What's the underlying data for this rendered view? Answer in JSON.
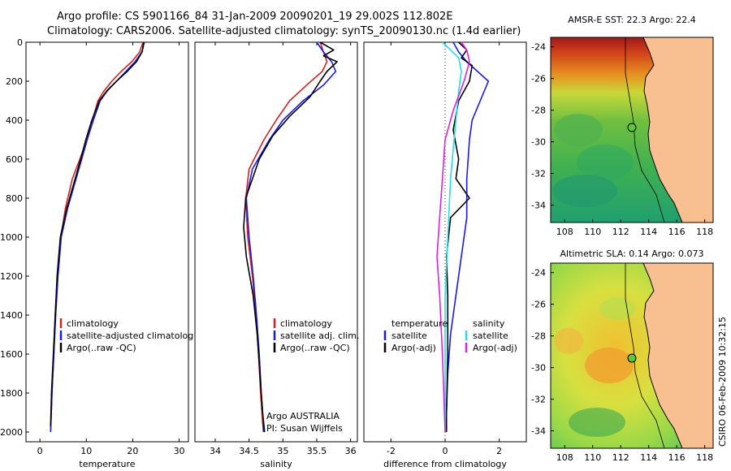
{
  "header": {
    "line1": "Argo profile: CS 5901166_84 31-Jan-2009 20090201_19 29.002S 112.802E",
    "line2": "Climatology: CARS2006. Satellite-adjusted climatology: synTS_20090130.nc (1.4d earlier)"
  },
  "chart_data": [
    {
      "type": "line",
      "xlabel": "temperature",
      "ylabel": "",
      "xlim": [
        -3,
        32
      ],
      "ylim": [
        2050,
        0
      ],
      "xticks": [
        "0",
        "10",
        "20",
        "30"
      ],
      "yticks": [
        "0",
        "200",
        "400",
        "600",
        "800",
        "1000",
        "1200",
        "1400",
        "1600",
        "1800",
        "2000"
      ],
      "legend": [
        "climatology",
        "satellite-adjusted climatolog",
        "Argo(..raw -QC)"
      ],
      "colors": {
        "climatology": "#d42020",
        "satellite": "#1a1ae6",
        "argo": "#000000"
      },
      "series": [
        {
          "name": "climatology",
          "x": [
            22.2,
            21.5,
            19.8,
            17.5,
            15.5,
            13.8,
            12.5,
            11.3,
            10.1,
            8.6,
            7.0,
            5.5,
            4.5,
            3.8,
            3.3,
            3.0,
            2.6,
            2.3
          ],
          "y": [
            0,
            50,
            100,
            150,
            200,
            250,
            300,
            400,
            500,
            600,
            700,
            850,
            1000,
            1200,
            1400,
            1600,
            1800,
            2000
          ]
        },
        {
          "name": "satellite-adjusted climatolog",
          "x": [
            22.5,
            22.0,
            20.5,
            18.5,
            16.5,
            14.5,
            13.0,
            11.5,
            10.2,
            9.0,
            7.8,
            6.0,
            4.6,
            3.9,
            3.4,
            3.0,
            2.6,
            2.3
          ],
          "y": [
            0,
            50,
            100,
            150,
            200,
            250,
            300,
            400,
            500,
            600,
            700,
            850,
            1000,
            1200,
            1400,
            1600,
            1800,
            2000
          ]
        },
        {
          "name": "Argo(..raw -QC)",
          "x": [
            22.4,
            22.0,
            20.8,
            18.8,
            16.5,
            14.4,
            12.8,
            11.2,
            9.9,
            8.8,
            7.6,
            5.8,
            4.4,
            3.7,
            3.3,
            2.9,
            2.5,
            2.3
          ],
          "y": [
            0,
            50,
            100,
            150,
            200,
            250,
            300,
            400,
            500,
            600,
            700,
            850,
            1000,
            1200,
            1400,
            1600,
            1800,
            1970
          ]
        }
      ]
    },
    {
      "type": "line",
      "xlabel": "salinity",
      "ylabel": "",
      "xlim": [
        33.7,
        36.1
      ],
      "ylim": [
        2050,
        0
      ],
      "xticks": [
        "34",
        "34.5",
        "35",
        "35.5",
        "36"
      ],
      "legend": [
        "climatology",
        "satellite adj. clim.",
        "Argo(..raw -QC)"
      ],
      "annotation": [
        "Argo AUSTRALIA",
        "PI: Susan Wijffels"
      ],
      "series": [
        {
          "name": "climatology",
          "x": [
            35.55,
            35.6,
            35.65,
            35.58,
            35.35,
            35.1,
            34.9,
            34.72,
            34.5,
            34.45,
            34.48,
            34.55,
            34.6,
            34.64,
            34.67,
            34.7,
            34.71
          ],
          "y": [
            0,
            50,
            100,
            150,
            220,
            300,
            400,
            500,
            650,
            800,
            1000,
            1200,
            1400,
            1600,
            1800,
            1950,
            2000
          ]
        },
        {
          "name": "satellite adj. clim.",
          "x": [
            35.5,
            35.6,
            35.72,
            35.78,
            35.6,
            35.3,
            35.0,
            34.8,
            34.55,
            34.46,
            34.5,
            34.56,
            34.61,
            34.65,
            34.68,
            34.71,
            34.72
          ],
          "y": [
            0,
            50,
            100,
            150,
            220,
            300,
            400,
            500,
            650,
            800,
            1000,
            1200,
            1400,
            1600,
            1800,
            1950,
            2000
          ]
        },
        {
          "name": "Argo(..raw -QC)",
          "x": [
            35.55,
            35.75,
            35.6,
            35.8,
            35.65,
            35.55,
            35.4,
            35.1,
            34.85,
            34.65,
            34.45,
            34.42,
            34.46,
            34.56,
            34.62,
            34.66,
            34.7,
            34.73
          ],
          "y": [
            0,
            40,
            70,
            100,
            150,
            200,
            280,
            380,
            480,
            600,
            800,
            950,
            1100,
            1300,
            1500,
            1700,
            1900,
            2000
          ]
        }
      ]
    },
    {
      "type": "line",
      "xlabel": "difference from climatology",
      "ylabel": "",
      "xlim": [
        -3,
        3
      ],
      "ylim": [
        2050,
        0
      ],
      "xticks": [
        "-2",
        "0",
        "2"
      ],
      "legend_left_title": "temperature",
      "legend_left": [
        "satellite",
        "Argo(-adj)"
      ],
      "legend_right_title": "salinity",
      "legend_right": [
        "satellite",
        "Argo(-adj)"
      ],
      "colors": {
        "t_satellite": "#1a1ae6",
        "t_argo": "#000000",
        "s_satellite": "#22e0e6",
        "s_argo": "#e020e0"
      },
      "series": [
        {
          "name": "satellite",
          "group": "temperature",
          "x": [
            0.3,
            0.5,
            0.8,
            1.2,
            1.6,
            1.3,
            1.0,
            0.9,
            0.8,
            0.8,
            0.6,
            0.4,
            0.2,
            0.1,
            0.05,
            0.05
          ],
          "y": [
            0,
            50,
            100,
            150,
            200,
            300,
            400,
            500,
            700,
            900,
            1100,
            1300,
            1500,
            1700,
            1900,
            2000
          ]
        },
        {
          "name": "Argo(-adj)",
          "group": "temperature",
          "x": [
            0.5,
            0.8,
            0.6,
            1.0,
            0.9,
            0.5,
            0.3,
            0.5,
            0.4,
            0.9,
            0.2,
            0.05,
            0.1,
            0.1,
            0.05,
            0.05
          ],
          "y": [
            0,
            40,
            80,
            120,
            200,
            300,
            450,
            600,
            700,
            800,
            900,
            1100,
            1300,
            1600,
            1900,
            2000
          ]
        },
        {
          "name": "satellite",
          "group": "salinity",
          "x": [
            -0.1,
            0.2,
            0.5,
            0.6,
            0.5,
            0.4,
            0.3,
            0.2,
            0.1,
            0.0,
            0.0,
            0.0
          ],
          "y": [
            0,
            40,
            80,
            150,
            250,
            400,
            550,
            700,
            1000,
            1300,
            1600,
            2000
          ]
        },
        {
          "name": "Argo(-adj)",
          "group": "salinity",
          "x": [
            0.6,
            0.8,
            0.9,
            0.7,
            0.3,
            0.0,
            -0.1,
            -0.2,
            -0.3,
            -0.2,
            -0.1,
            0.0
          ],
          "y": [
            0,
            40,
            100,
            200,
            350,
            500,
            700,
            900,
            1100,
            1300,
            1600,
            2000
          ]
        }
      ]
    },
    {
      "type": "heatmap",
      "title": "AMSR-E SST: 22.3 Argo: 22.4",
      "xticks": [
        "108",
        "110",
        "112",
        "114",
        "116",
        "118"
      ],
      "yticks": [
        "-24",
        "-26",
        "-28",
        "-30",
        "-32",
        "-34"
      ],
      "xlim": [
        107,
        118.6
      ],
      "ylim": [
        -35.1,
        -23.4
      ],
      "marker": {
        "lon": 112.802,
        "lat": -29.002
      }
    },
    {
      "type": "heatmap",
      "title": "Altimetric SLA: 0.14 Argo: 0.073",
      "xticks": [
        "108",
        "110",
        "112",
        "114",
        "116",
        "118"
      ],
      "yticks": [
        "-24",
        "-26",
        "-28",
        "-30",
        "-32",
        "-34"
      ],
      "xlim": [
        107,
        118.6
      ],
      "ylim": [
        -35.1,
        -23.4
      ],
      "marker": {
        "lon": 112.802,
        "lat": -29.002
      }
    }
  ],
  "footer": {
    "credit": "CSIRO 06-Feb-2009 10:32:15"
  }
}
